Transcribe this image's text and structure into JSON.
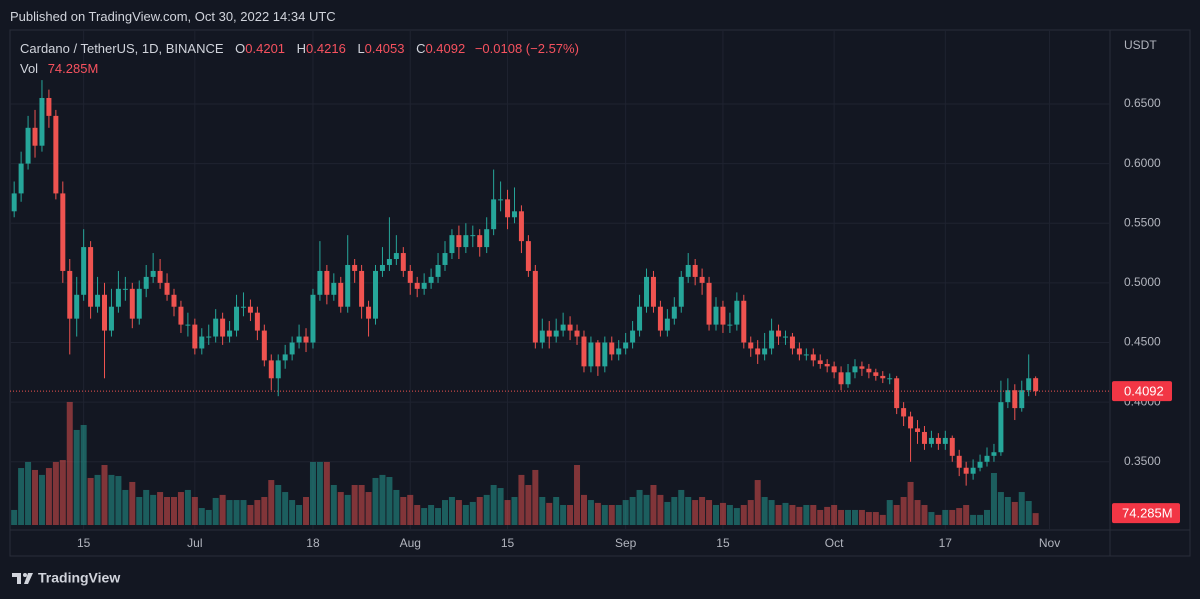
{
  "header": {
    "published": "Published on TradingView.com, Oct 30, 2022 14:34 UTC",
    "logo": "TradingView"
  },
  "chart_data": {
    "type": "candlestick",
    "title": "Cardano / TetherUS, 1D, BINANCE",
    "ohlc_labels": [
      "O",
      "H",
      "L",
      "C"
    ],
    "change": "−0.0108 (−2.57%)",
    "y_axis_label": "USDT",
    "up_color": "#26a69a",
    "down_color": "#ef5350",
    "grid": true,
    "ylim": [
      0.297,
      0.712
    ],
    "yticks": [
      {
        "value": 0.35,
        "label": "0.3500"
      },
      {
        "value": 0.4,
        "label": "0.4000"
      },
      {
        "value": 0.45,
        "label": "0.4500"
      },
      {
        "value": 0.5,
        "label": "0.5000"
      },
      {
        "value": 0.55,
        "label": "0.5500"
      },
      {
        "value": 0.6,
        "label": "0.6000"
      },
      {
        "value": 0.65,
        "label": "0.6500"
      }
    ],
    "xlim": [
      -0.6,
      157.7
    ],
    "xticks": [
      {
        "value": 10,
        "label": "15"
      },
      {
        "value": 26,
        "label": "Jul"
      },
      {
        "value": 43,
        "label": "18"
      },
      {
        "value": 57,
        "label": "Aug"
      },
      {
        "value": 71,
        "label": "15"
      },
      {
        "value": 88,
        "label": "Sep"
      },
      {
        "value": 102,
        "label": "15"
      },
      {
        "value": 118,
        "label": "Oct"
      },
      {
        "value": 134,
        "label": "17"
      },
      {
        "value": 149,
        "label": "Nov"
      }
    ],
    "open": [
      0.56,
      0.575,
      0.6,
      0.63,
      0.615,
      0.655,
      0.64,
      0.575,
      0.51,
      0.47,
      0.49,
      0.53,
      0.48,
      0.49,
      0.46,
      0.48,
      0.495,
      0.495,
      0.47,
      0.495,
      0.505,
      0.51,
      0.5,
      0.49,
      0.48,
      0.465,
      0.465,
      0.445,
      0.455,
      0.455,
      0.47,
      0.455,
      0.46,
      0.48,
      0.48,
      0.475,
      0.46,
      0.435,
      0.42,
      0.435,
      0.44,
      0.45,
      0.455,
      0.45,
      0.49,
      0.51,
      0.49,
      0.5,
      0.48,
      0.515,
      0.51,
      0.48,
      0.47,
      0.51,
      0.515,
      0.52,
      0.525,
      0.51,
      0.5,
      0.495,
      0.5,
      0.505,
      0.515,
      0.525,
      0.54,
      0.53,
      0.54,
      0.54,
      0.53,
      0.545,
      0.57,
      0.57,
      0.555,
      0.56,
      0.535,
      0.51,
      0.45,
      0.46,
      0.455,
      0.46,
      0.465,
      0.46,
      0.455,
      0.43,
      0.45,
      0.43,
      0.45,
      0.44,
      0.445,
      0.45,
      0.46,
      0.48,
      0.505,
      0.48,
      0.46,
      0.47,
      0.48,
      0.505,
      0.515,
      0.505,
      0.5,
      0.465,
      0.48,
      0.465,
      0.465,
      0.485,
      0.45,
      0.445,
      0.44,
      0.445,
      0.46,
      0.455,
      0.455,
      0.445,
      0.44,
      0.44,
      0.435,
      0.432,
      0.43,
      0.425,
      0.415,
      0.425,
      0.43,
      0.428,
      0.425,
      0.422,
      0.42,
      0.42,
      0.395,
      0.388,
      0.378,
      0.375,
      0.365,
      0.37,
      0.365,
      0.37,
      0.355,
      0.345,
      0.34,
      0.345,
      0.35,
      0.355,
      0.358,
      0.4,
      0.41,
      0.395,
      0.41,
      0.4201
    ],
    "high": [
      0.585,
      0.61,
      0.64,
      0.645,
      0.67,
      0.662,
      0.645,
      0.585,
      0.52,
      0.505,
      0.545,
      0.535,
      0.505,
      0.5,
      0.495,
      0.51,
      0.505,
      0.5,
      0.502,
      0.515,
      0.525,
      0.52,
      0.508,
      0.495,
      0.485,
      0.475,
      0.47,
      0.462,
      0.465,
      0.478,
      0.475,
      0.468,
      0.49,
      0.492,
      0.486,
      0.48,
      0.465,
      0.44,
      0.44,
      0.448,
      0.455,
      0.465,
      0.462,
      0.495,
      0.535,
      0.515,
      0.508,
      0.505,
      0.54,
      0.52,
      0.515,
      0.485,
      0.515,
      0.53,
      0.555,
      0.54,
      0.53,
      0.515,
      0.505,
      0.508,
      0.512,
      0.525,
      0.535,
      0.545,
      0.548,
      0.55,
      0.548,
      0.545,
      0.555,
      0.595,
      0.585,
      0.578,
      0.58,
      0.565,
      0.54,
      0.515,
      0.47,
      0.468,
      0.47,
      0.475,
      0.472,
      0.465,
      0.46,
      0.455,
      0.452,
      0.455,
      0.455,
      0.452,
      0.458,
      0.468,
      0.49,
      0.512,
      0.51,
      0.485,
      0.478,
      0.488,
      0.51,
      0.525,
      0.52,
      0.512,
      0.505,
      0.488,
      0.485,
      0.475,
      0.492,
      0.49,
      0.455,
      0.452,
      0.458,
      0.47,
      0.465,
      0.46,
      0.458,
      0.45,
      0.445,
      0.445,
      0.44,
      0.436,
      0.434,
      0.43,
      0.432,
      0.436,
      0.434,
      0.432,
      0.428,
      0.426,
      0.424,
      0.422,
      0.4,
      0.392,
      0.385,
      0.38,
      0.376,
      0.374,
      0.376,
      0.372,
      0.36,
      0.35,
      0.352,
      0.356,
      0.362,
      0.365,
      0.418,
      0.42,
      0.415,
      0.418,
      0.44,
      0.4216
    ],
    "low": [
      0.555,
      0.568,
      0.595,
      0.605,
      0.61,
      0.63,
      0.57,
      0.5,
      0.44,
      0.455,
      0.485,
      0.47,
      0.475,
      0.42,
      0.455,
      0.475,
      0.485,
      0.462,
      0.465,
      0.488,
      0.5,
      0.495,
      0.485,
      0.472,
      0.458,
      0.455,
      0.44,
      0.44,
      0.448,
      0.45,
      0.448,
      0.45,
      0.455,
      0.472,
      0.468,
      0.452,
      0.43,
      0.41,
      0.405,
      0.428,
      0.435,
      0.445,
      0.442,
      0.445,
      0.485,
      0.482,
      0.485,
      0.475,
      0.475,
      0.5,
      0.47,
      0.455,
      0.465,
      0.505,
      0.51,
      0.515,
      0.505,
      0.49,
      0.488,
      0.49,
      0.495,
      0.5,
      0.51,
      0.52,
      0.52,
      0.525,
      0.53,
      0.522,
      0.525,
      0.54,
      0.56,
      0.545,
      0.55,
      0.525,
      0.505,
      0.445,
      0.445,
      0.445,
      0.45,
      0.455,
      0.452,
      0.448,
      0.425,
      0.425,
      0.422,
      0.425,
      0.435,
      0.435,
      0.44,
      0.445,
      0.455,
      0.475,
      0.475,
      0.455,
      0.455,
      0.465,
      0.475,
      0.5,
      0.498,
      0.49,
      0.46,
      0.46,
      0.458,
      0.458,
      0.46,
      0.445,
      0.438,
      0.432,
      0.435,
      0.44,
      0.448,
      0.448,
      0.44,
      0.435,
      0.435,
      0.43,
      0.428,
      0.425,
      0.42,
      0.41,
      0.412,
      0.42,
      0.422,
      0.42,
      0.418,
      0.416,
      0.415,
      0.39,
      0.38,
      0.35,
      0.365,
      0.36,
      0.362,
      0.36,
      0.36,
      0.35,
      0.338,
      0.33,
      0.335,
      0.342,
      0.346,
      0.35,
      0.355,
      0.395,
      0.385,
      0.392,
      0.405,
      0.4053
    ],
    "close": [
      0.575,
      0.6,
      0.63,
      0.615,
      0.655,
      0.64,
      0.575,
      0.51,
      0.47,
      0.49,
      0.53,
      0.48,
      0.49,
      0.46,
      0.48,
      0.495,
      0.495,
      0.47,
      0.495,
      0.505,
      0.51,
      0.5,
      0.49,
      0.48,
      0.465,
      0.465,
      0.445,
      0.455,
      0.455,
      0.47,
      0.455,
      0.46,
      0.48,
      0.48,
      0.475,
      0.46,
      0.435,
      0.42,
      0.435,
      0.44,
      0.45,
      0.455,
      0.45,
      0.49,
      0.51,
      0.49,
      0.5,
      0.48,
      0.515,
      0.51,
      0.48,
      0.47,
      0.51,
      0.515,
      0.52,
      0.525,
      0.51,
      0.5,
      0.495,
      0.5,
      0.505,
      0.515,
      0.525,
      0.54,
      0.53,
      0.54,
      0.54,
      0.53,
      0.545,
      0.57,
      0.57,
      0.555,
      0.56,
      0.535,
      0.51,
      0.45,
      0.46,
      0.455,
      0.46,
      0.465,
      0.46,
      0.455,
      0.43,
      0.45,
      0.43,
      0.45,
      0.44,
      0.445,
      0.45,
      0.46,
      0.48,
      0.505,
      0.48,
      0.46,
      0.47,
      0.48,
      0.505,
      0.515,
      0.505,
      0.5,
      0.465,
      0.48,
      0.465,
      0.465,
      0.485,
      0.45,
      0.445,
      0.44,
      0.445,
      0.46,
      0.455,
      0.455,
      0.445,
      0.44,
      0.44,
      0.435,
      0.432,
      0.43,
      0.425,
      0.415,
      0.425,
      0.43,
      0.428,
      0.425,
      0.422,
      0.42,
      0.42,
      0.395,
      0.388,
      0.378,
      0.375,
      0.365,
      0.37,
      0.365,
      0.37,
      0.355,
      0.345,
      0.34,
      0.345,
      0.35,
      0.355,
      0.358,
      0.4,
      0.41,
      0.395,
      0.41,
      0.42,
      0.4092
    ],
    "volume": {
      "name": "Vol",
      "ylim": [
        0,
        1000
      ],
      "values": [
        94,
        356,
        394,
        344,
        313,
        356,
        394,
        406,
        769,
        594,
        625,
        294,
        313,
        375,
        313,
        306,
        219,
        269,
        175,
        219,
        188,
        206,
        175,
        175,
        206,
        219,
        175,
        106,
        94,
        169,
        188,
        156,
        156,
        156,
        125,
        156,
        175,
        281,
        250,
        206,
        156,
        125,
        175,
        394,
        394,
        394,
        250,
        206,
        188,
        250,
        250,
        206,
        294,
        313,
        300,
        219,
        175,
        188,
        125,
        106,
        125,
        106,
        156,
        175,
        156,
        125,
        144,
        175,
        188,
        250,
        231,
        156,
        175,
        313,
        250,
        344,
        175,
        138,
        175,
        125,
        125,
        375,
        188,
        156,
        138,
        125,
        125,
        125,
        156,
        175,
        219,
        188,
        250,
        188,
        144,
        175,
        219,
        175,
        156,
        175,
        156,
        125,
        138,
        125,
        106,
        125,
        156,
        281,
        175,
        156,
        125,
        138,
        125,
        113,
        125,
        125,
        94,
        113,
        125,
        94,
        94,
        94,
        94,
        81,
        81,
        63,
        156,
        125,
        175,
        269,
        156,
        125,
        81,
        63,
        94,
        94,
        106,
        125,
        63,
        63,
        94,
        325,
        206,
        175,
        144,
        206,
        150,
        74.285
      ],
      "value_labels": [
        null,
        null,
        null,
        null,
        null,
        null,
        null,
        null,
        null,
        null,
        null,
        null,
        null,
        null,
        null,
        null,
        null,
        null,
        null,
        null,
        null,
        null,
        null,
        null,
        null,
        null,
        null,
        null,
        null,
        null,
        null,
        null,
        null,
        null,
        null,
        null,
        null,
        null,
        null,
        null,
        null,
        null,
        null,
        null,
        null,
        null,
        null,
        null,
        null,
        null,
        null,
        null,
        null,
        null,
        null,
        null,
        null,
        null,
        null,
        null,
        null,
        null,
        null,
        null,
        null,
        null,
        null,
        null,
        null,
        null,
        null,
        null,
        null,
        null,
        null,
        null,
        null,
        null,
        null,
        null,
        null,
        null,
        null,
        null,
        null,
        null,
        null,
        null,
        null,
        null,
        null,
        null,
        null,
        null,
        null,
        null,
        null,
        null,
        null,
        null,
        null,
        null,
        null,
        null,
        null,
        null,
        null,
        null,
        null,
        null,
        null,
        null,
        null,
        null,
        null,
        null,
        null,
        null,
        null,
        null,
        null,
        null,
        null,
        null,
        null,
        null,
        null,
        null,
        null,
        null,
        null,
        null,
        null,
        null,
        null,
        null,
        null,
        null,
        null,
        null,
        null,
        null,
        null,
        null,
        null,
        null,
        null,
        "74.285M"
      ]
    }
  }
}
